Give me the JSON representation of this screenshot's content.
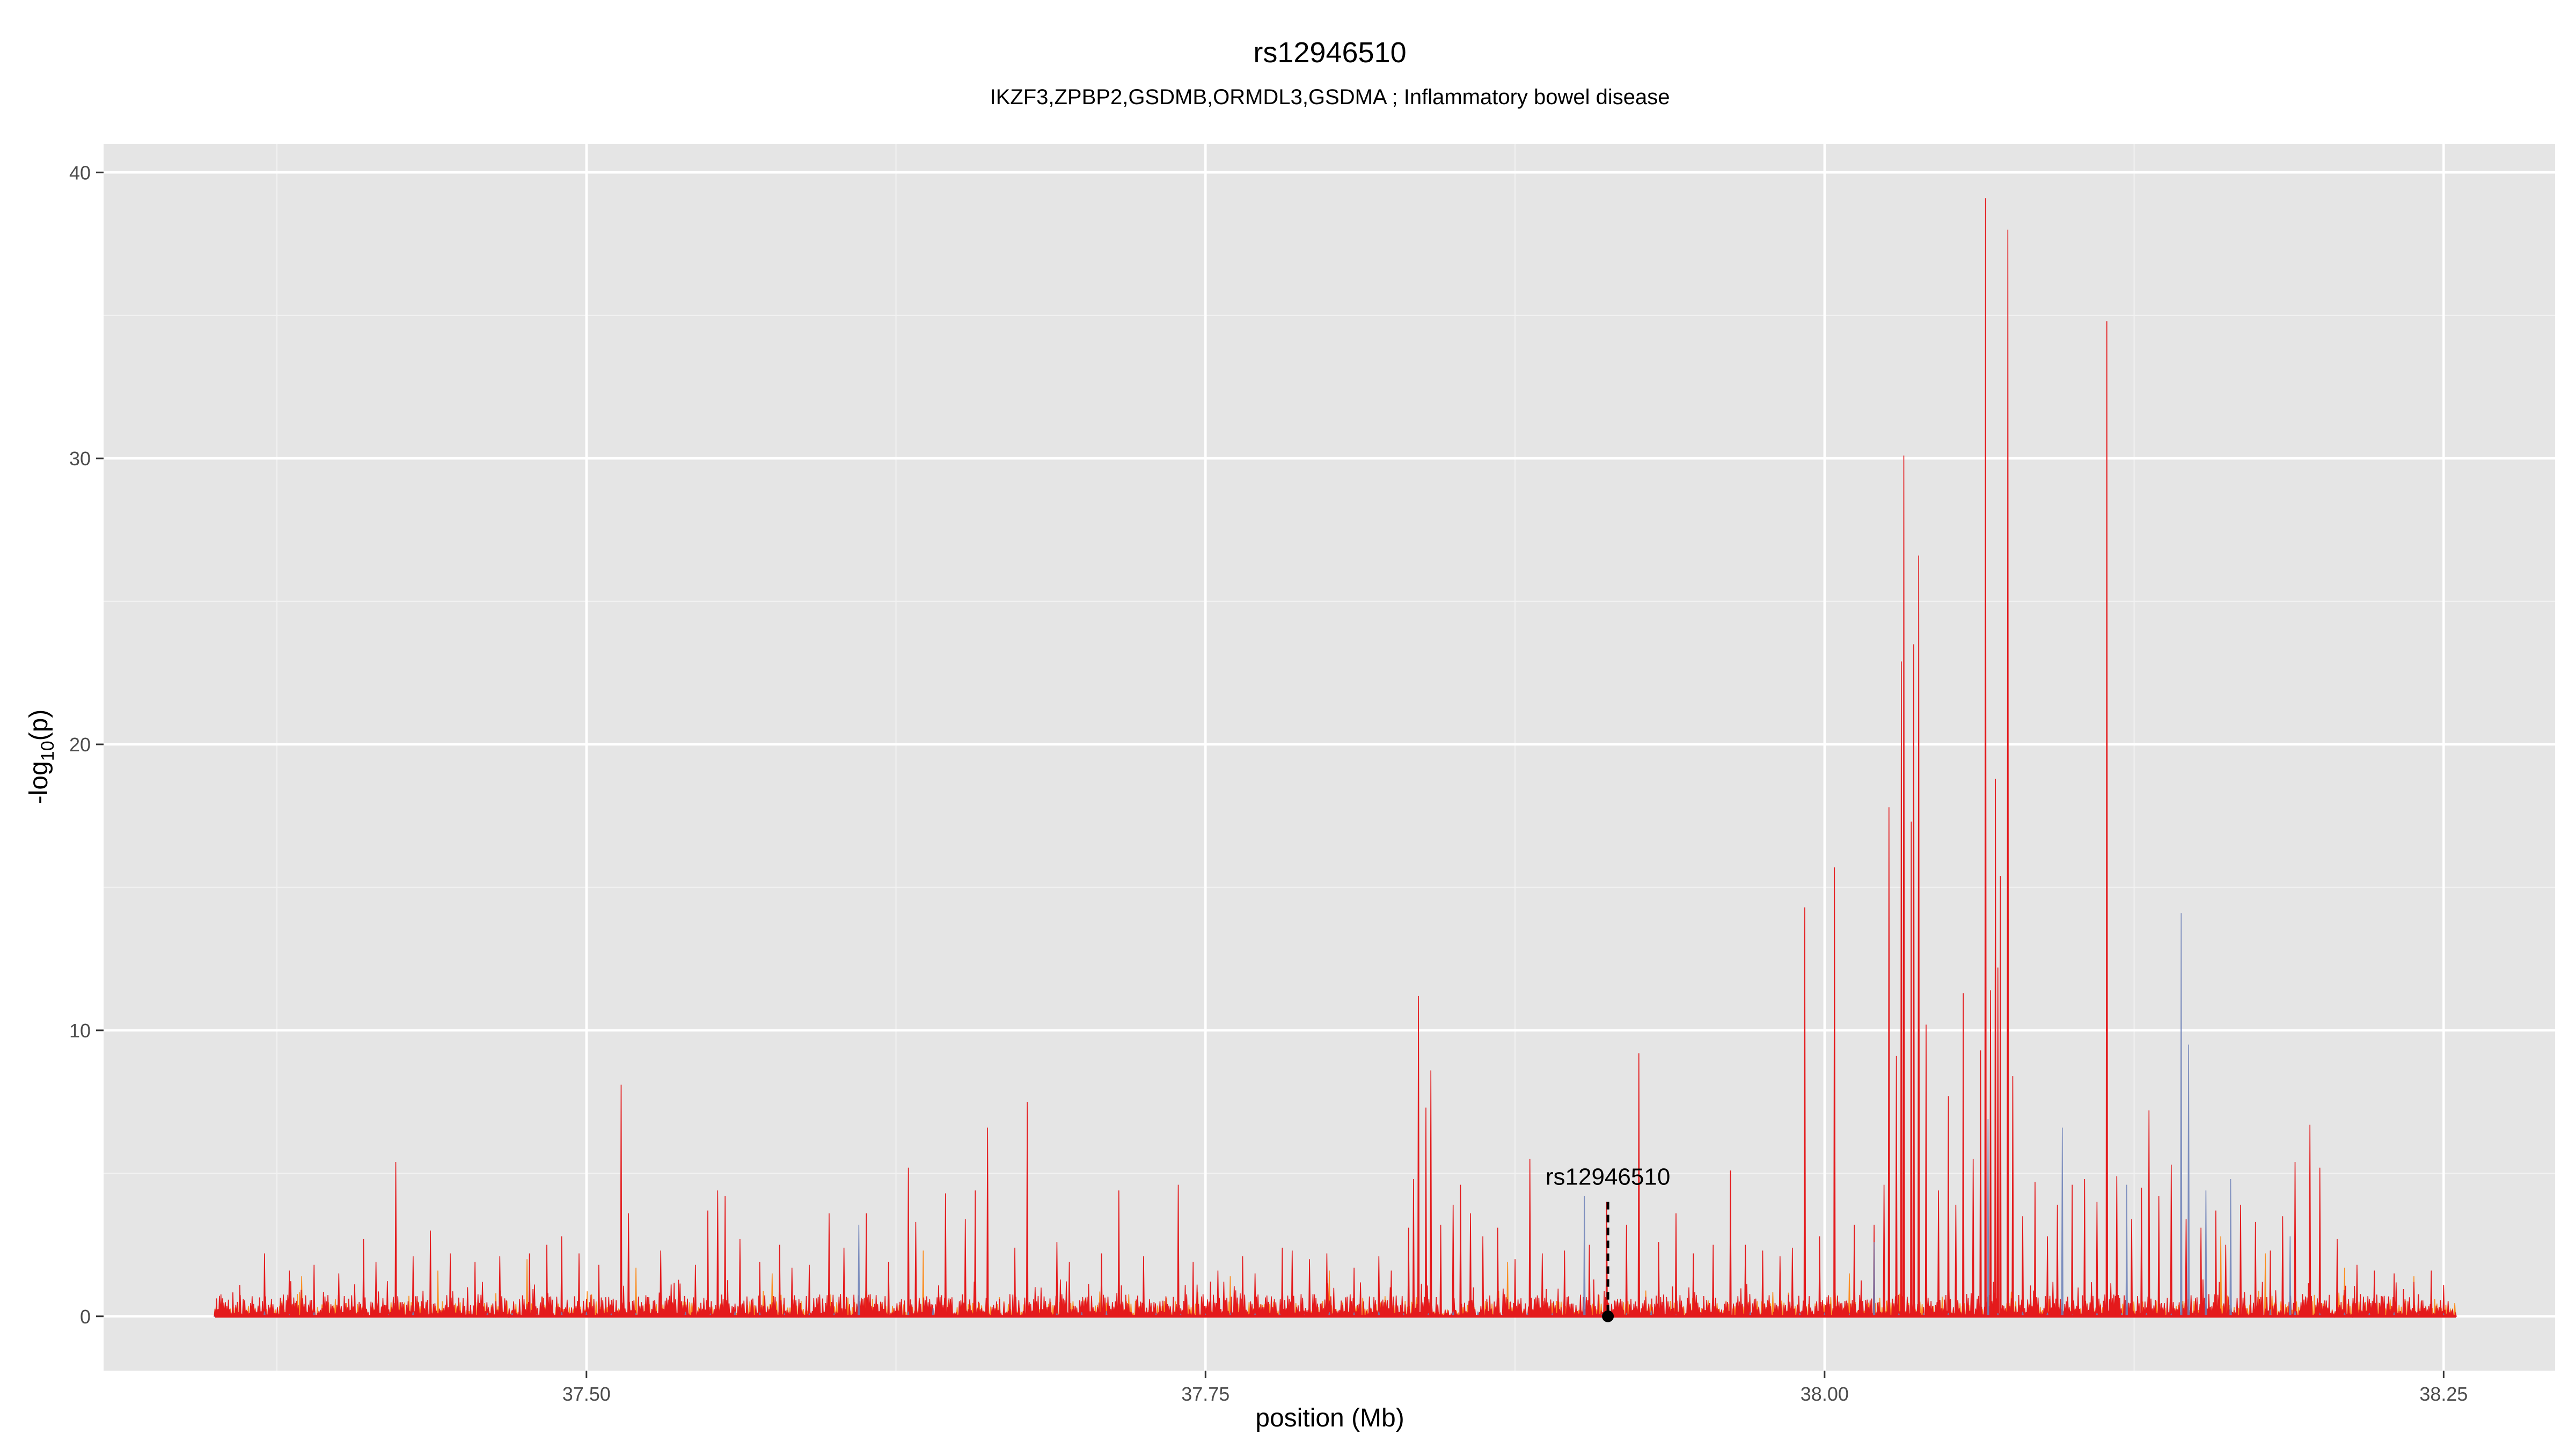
{
  "chart_data": {
    "type": "line",
    "title": "rs12946510",
    "subtitle": "IKZF3,ZPBP2,GSDMB,ORMDL3,GSDMA ; Inflammatory bowel disease",
    "xlabel": "position (Mb)",
    "ylabel_main": "-log",
    "ylabel_sub": "10",
    "ylabel_tail": "(p)",
    "xlim": [
      37.305,
      38.295
    ],
    "ylim": [
      -1.9,
      41.0
    ],
    "x_ticks": [
      37.5,
      37.75,
      38.0,
      38.25
    ],
    "x_tick_labels": [
      "37.50",
      "37.75",
      "38.00",
      "38.25"
    ],
    "y_ticks": [
      0,
      10,
      20,
      30,
      40
    ],
    "y_tick_labels": [
      "0",
      "10",
      "20",
      "30",
      "40"
    ],
    "grid": true,
    "x_range": [
      37.35,
      38.255
    ],
    "baseline_noise_max": 1.3,
    "colors": {
      "panel": "#e5e5e5",
      "grid_major": "#ffffff",
      "grid_minor": "#f2f2f2",
      "series_main": "#e41a1c",
      "series_orange": "#ff7f00",
      "series_blue": "#6b7fb8",
      "marker": "#000000"
    },
    "series": [
      {
        "color_key": "series_main",
        "peaks": [
          [
            37.36,
            1.1
          ],
          [
            37.37,
            2.2
          ],
          [
            37.38,
            1.6
          ],
          [
            37.39,
            1.8
          ],
          [
            37.4,
            1.5
          ],
          [
            37.41,
            2.7
          ],
          [
            37.415,
            1.9
          ],
          [
            37.423,
            5.4
          ],
          [
            37.43,
            2.1
          ],
          [
            37.437,
            3.0
          ],
          [
            37.445,
            2.2
          ],
          [
            37.455,
            1.9
          ],
          [
            37.465,
            2.1
          ],
          [
            37.477,
            2.2
          ],
          [
            37.484,
            2.5
          ],
          [
            37.49,
            2.8
          ],
          [
            37.497,
            2.2
          ],
          [
            37.505,
            1.8
          ],
          [
            37.514,
            8.1
          ],
          [
            37.517,
            3.6
          ],
          [
            37.53,
            2.3
          ],
          [
            37.544,
            1.8
          ],
          [
            37.549,
            3.7
          ],
          [
            37.553,
            4.4
          ],
          [
            37.556,
            4.2
          ],
          [
            37.562,
            2.7
          ],
          [
            37.57,
            1.9
          ],
          [
            37.578,
            2.5
          ],
          [
            37.583,
            1.7
          ],
          [
            37.59,
            1.8
          ],
          [
            37.598,
            3.6
          ],
          [
            37.604,
            2.4
          ],
          [
            37.613,
            3.6
          ],
          [
            37.622,
            1.9
          ],
          [
            37.63,
            5.2
          ],
          [
            37.633,
            3.3
          ],
          [
            37.645,
            4.3
          ],
          [
            37.653,
            3.4
          ],
          [
            37.657,
            4.4
          ],
          [
            37.662,
            6.6
          ],
          [
            37.673,
            2.4
          ],
          [
            37.678,
            7.5
          ],
          [
            37.69,
            2.6
          ],
          [
            37.695,
            1.9
          ],
          [
            37.708,
            2.2
          ],
          [
            37.715,
            4.4
          ],
          [
            37.725,
            2.1
          ],
          [
            37.739,
            4.6
          ],
          [
            37.745,
            1.9
          ],
          [
            37.755,
            1.6
          ],
          [
            37.765,
            2.1
          ],
          [
            37.77,
            1.5
          ],
          [
            37.781,
            2.4
          ],
          [
            37.785,
            2.3
          ],
          [
            37.792,
            2.0
          ],
          [
            37.799,
            2.2
          ],
          [
            37.81,
            1.7
          ],
          [
            37.82,
            2.1
          ],
          [
            37.825,
            1.6
          ],
          [
            37.832,
            3.1
          ],
          [
            37.834,
            4.8
          ],
          [
            37.836,
            11.2
          ],
          [
            37.839,
            7.3
          ],
          [
            37.841,
            8.6
          ],
          [
            37.845,
            3.2
          ],
          [
            37.85,
            3.9
          ],
          [
            37.853,
            4.6
          ],
          [
            37.857,
            3.6
          ],
          [
            37.862,
            2.8
          ],
          [
            37.868,
            3.1
          ],
          [
            37.875,
            2.0
          ],
          [
            37.881,
            5.5
          ],
          [
            37.886,
            2.2
          ],
          [
            37.895,
            2.3
          ],
          [
            37.905,
            2.5
          ],
          [
            37.912,
            4.0
          ],
          [
            37.92,
            3.2
          ],
          [
            37.925,
            9.2
          ],
          [
            37.933,
            2.6
          ],
          [
            37.94,
            3.6
          ],
          [
            37.947,
            2.2
          ],
          [
            37.955,
            2.5
          ],
          [
            37.962,
            5.1
          ],
          [
            37.968,
            2.5
          ],
          [
            37.975,
            2.3
          ],
          [
            37.982,
            2.1
          ],
          [
            37.987,
            2.4
          ],
          [
            37.992,
            14.3
          ],
          [
            37.998,
            2.8
          ],
          [
            38.004,
            15.7
          ],
          [
            38.012,
            3.2
          ],
          [
            38.02,
            3.2
          ],
          [
            38.024,
            4.6
          ],
          [
            38.026,
            17.8
          ],
          [
            38.029,
            9.1
          ],
          [
            38.031,
            22.9
          ],
          [
            38.032,
            30.1
          ],
          [
            38.035,
            17.3
          ],
          [
            38.036,
            23.5
          ],
          [
            38.038,
            26.6
          ],
          [
            38.041,
            10.2
          ],
          [
            38.046,
            4.4
          ],
          [
            38.05,
            7.7
          ],
          [
            38.053,
            3.9
          ],
          [
            38.056,
            11.3
          ],
          [
            38.06,
            5.5
          ],
          [
            38.063,
            9.3
          ],
          [
            38.065,
            39.1
          ],
          [
            38.067,
            11.4
          ],
          [
            38.069,
            18.8
          ],
          [
            38.07,
            12.2
          ],
          [
            38.071,
            15.4
          ],
          [
            38.074,
            38.0
          ],
          [
            38.076,
            8.4
          ],
          [
            38.08,
            3.5
          ],
          [
            38.085,
            4.7
          ],
          [
            38.09,
            2.8
          ],
          [
            38.094,
            3.9
          ],
          [
            38.1,
            4.6
          ],
          [
            38.105,
            4.8
          ],
          [
            38.11,
            4.0
          ],
          [
            38.114,
            34.8
          ],
          [
            38.118,
            4.9
          ],
          [
            38.124,
            3.4
          ],
          [
            38.128,
            4.5
          ],
          [
            38.131,
            7.2
          ],
          [
            38.135,
            4.2
          ],
          [
            38.14,
            5.3
          ],
          [
            38.146,
            3.4
          ],
          [
            38.152,
            3.1
          ],
          [
            38.158,
            3.7
          ],
          [
            38.162,
            2.5
          ],
          [
            38.168,
            3.9
          ],
          [
            38.174,
            3.3
          ],
          [
            38.18,
            2.3
          ],
          [
            38.185,
            3.5
          ],
          [
            38.19,
            5.4
          ],
          [
            38.196,
            6.7
          ],
          [
            38.2,
            5.2
          ],
          [
            38.207,
            2.7
          ],
          [
            38.215,
            1.8
          ],
          [
            38.222,
            1.6
          ],
          [
            38.23,
            1.5
          ],
          [
            38.238,
            1.2
          ],
          [
            38.245,
            1.6
          ],
          [
            38.25,
            1.1
          ]
        ]
      },
      {
        "color_key": "series_orange",
        "peaks": [
          [
            37.385,
            1.4
          ],
          [
            37.44,
            1.6
          ],
          [
            37.476,
            2.0
          ],
          [
            37.52,
            1.7
          ],
          [
            37.575,
            1.5
          ],
          [
            37.636,
            2.3
          ],
          [
            37.69,
            1.8
          ],
          [
            37.76,
            1.4
          ],
          [
            37.8,
            1.6
          ],
          [
            37.872,
            1.9
          ],
          [
            37.94,
            1.6
          ],
          [
            38.01,
            1.5
          ],
          [
            38.09,
            2.0
          ],
          [
            38.16,
            2.8
          ],
          [
            38.178,
            2.2
          ],
          [
            38.21,
            1.7
          ],
          [
            38.238,
            1.4
          ]
        ]
      },
      {
        "color_key": "series_blue",
        "peaks": [
          [
            37.61,
            3.2
          ],
          [
            37.903,
            4.2
          ],
          [
            38.02,
            2.6
          ],
          [
            38.066,
            6.9
          ],
          [
            38.096,
            6.6
          ],
          [
            38.122,
            4.6
          ],
          [
            38.144,
            14.1
          ],
          [
            38.147,
            9.5
          ],
          [
            38.154,
            4.4
          ],
          [
            38.164,
            4.8
          ],
          [
            38.188,
            2.8
          ]
        ]
      }
    ],
    "annotation": {
      "label": "rs12946510",
      "x": 37.9125,
      "y": 0,
      "line_top": 4.0
    }
  }
}
